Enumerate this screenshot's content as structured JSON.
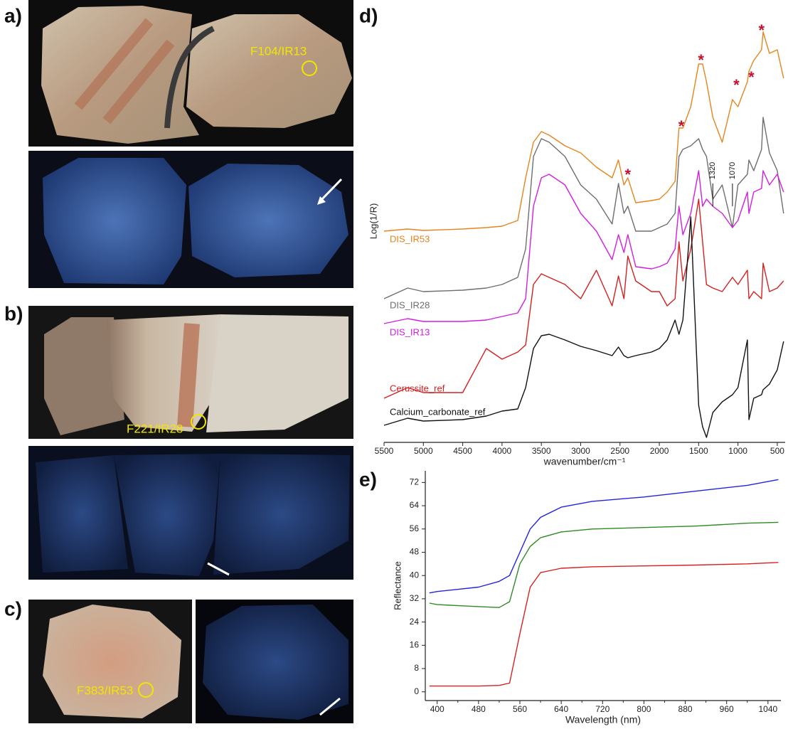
{
  "panels": {
    "labels": [
      "a)",
      "b)",
      "c)",
      "d)",
      "e)"
    ],
    "sample_labels": [
      "F104/IR13",
      "F221/IR28",
      "F383/IR53"
    ]
  },
  "chart_data": [
    {
      "type": "line",
      "x_label": "wavenumber/cm⁻¹",
      "y_label": "Log(1/R)",
      "x": [
        5500,
        5200,
        5000,
        4500,
        4200,
        4000,
        3800,
        3700,
        3600,
        3500,
        3400,
        3200,
        3000,
        2800,
        2600,
        2520,
        2450,
        2400,
        2300,
        2100,
        2000,
        1900,
        1800,
        1750,
        1700,
        1600,
        1500,
        1450,
        1400,
        1320,
        1200,
        1070,
        1000,
        880,
        860,
        800,
        700,
        680,
        600,
        500,
        420
      ],
      "xlim": [
        5500,
        400
      ],
      "xticks": [
        5500,
        5000,
        4500,
        4000,
        3500,
        3000,
        2500,
        2000,
        1500,
        1000,
        500
      ],
      "ylim": [
        0,
        622
      ],
      "series": [
        {
          "name": "DIS_IR53",
          "color": "#e8841c",
          "values": [
            297,
            300,
            298,
            300,
            302,
            304,
            312,
            372,
            422,
            437,
            432,
            417,
            407,
            387,
            372,
            397,
            362,
            372,
            337,
            340,
            342,
            352,
            367,
            442,
            442,
            472,
            532,
            532,
            507,
            457,
            422,
            482,
            472,
            507,
            522,
            537,
            552,
            577,
            547,
            552,
            512
          ]
        },
        {
          "name": "DIS_IR28",
          "color": "#6e6e6e",
          "values": [
            202,
            217,
            212,
            214,
            217,
            222,
            232,
            272,
            402,
            427,
            422,
            402,
            362,
            342,
            307,
            364,
            322,
            332,
            297,
            297,
            302,
            307,
            322,
            402,
            412,
            417,
            427,
            412,
            402,
            342,
            362,
            302,
            362,
            377,
            397,
            382,
            412,
            457,
            407,
            382,
            322
          ]
        },
        {
          "name": "DIS_IR13",
          "color": "#d21ee0",
          "values": [
            167,
            174,
            170,
            170,
            172,
            177,
            182,
            202,
            332,
            372,
            377,
            362,
            322,
            297,
            257,
            292,
            267,
            292,
            247,
            244,
            247,
            252,
            272,
            332,
            292,
            322,
            382,
            332,
            342,
            332,
            322,
            302,
            312,
            352,
            322,
            352,
            357,
            382,
            362,
            377,
            352
          ]
        },
        {
          "name": "Cerussite_ref",
          "color": "#d42020",
          "values": [
            62,
            77,
            70,
            70,
            132,
            117,
            127,
            137,
            222,
            237,
            232,
            222,
            202,
            242,
            192,
            234,
            202,
            262,
            227,
            212,
            212,
            192,
            202,
            282,
            227,
            272,
            342,
            282,
            222,
            217,
            212,
            232,
            222,
            242,
            202,
            212,
            202,
            252,
            212,
            217,
            227
          ]
        },
        {
          "name": "Calcium_carbonate_ref",
          "color": "#111111",
          "values": [
            24,
            34,
            30,
            32,
            37,
            44,
            47,
            77,
            132,
            150,
            152,
            144,
            135,
            129,
            122,
            134,
            122,
            119,
            122,
            127,
            132,
            144,
            172,
            152,
            172,
            317,
            52,
            22,
            7,
            42,
            57,
            67,
            77,
            144,
            32,
            62,
            67,
            74,
            82,
            102,
            142
          ]
        }
      ],
      "annotations": [
        {
          "text": "*",
          "x": 2400,
          "y": 379,
          "color": "#c8102e"
        },
        {
          "text": "*",
          "x": 1720,
          "y": 447,
          "color": "#c8102e"
        },
        {
          "text": "*",
          "x": 1470,
          "y": 540,
          "color": "#c8102e"
        },
        {
          "text": "*",
          "x": 1020,
          "y": 505,
          "color": "#c8102e"
        },
        {
          "text": "*",
          "x": 830,
          "y": 516,
          "color": "#c8102e"
        },
        {
          "text": "*",
          "x": 700,
          "y": 582,
          "color": "#c8102e"
        },
        {
          "text": "1320",
          "x": 1320,
          "y": 382,
          "color": "#111111"
        },
        {
          "text": "1070",
          "x": 1070,
          "y": 382,
          "color": "#111111"
        }
      ]
    },
    {
      "type": "line",
      "x_label": "Wavelength (nm)",
      "y_label": "Reflectance",
      "x": [
        385,
        400,
        480,
        520,
        540,
        560,
        580,
        600,
        640,
        700,
        800,
        900,
        1000,
        1060
      ],
      "xlim": [
        377,
        1065
      ],
      "xticks": [
        400,
        480,
        560,
        640,
        720,
        800,
        880,
        960,
        1040
      ],
      "ylim": [
        -3,
        76
      ],
      "yticks": [
        0,
        8,
        16,
        24,
        32,
        40,
        48,
        56,
        64,
        72
      ],
      "series": [
        {
          "color": "#2323e0",
          "values": [
            34,
            34.5,
            36,
            38,
            40,
            48,
            56,
            60,
            63.5,
            65.5,
            67,
            69,
            71,
            73
          ]
        },
        {
          "color": "#2f8a24",
          "values": [
            30.5,
            30,
            29.3,
            29,
            31,
            44,
            50,
            53,
            55,
            56,
            56.5,
            57,
            58,
            58.3
          ]
        },
        {
          "color": "#d82020",
          "values": [
            2,
            2,
            2,
            2.2,
            3,
            20,
            36,
            41,
            42.5,
            43,
            43.3,
            43.6,
            44,
            44.5
          ]
        }
      ]
    }
  ]
}
